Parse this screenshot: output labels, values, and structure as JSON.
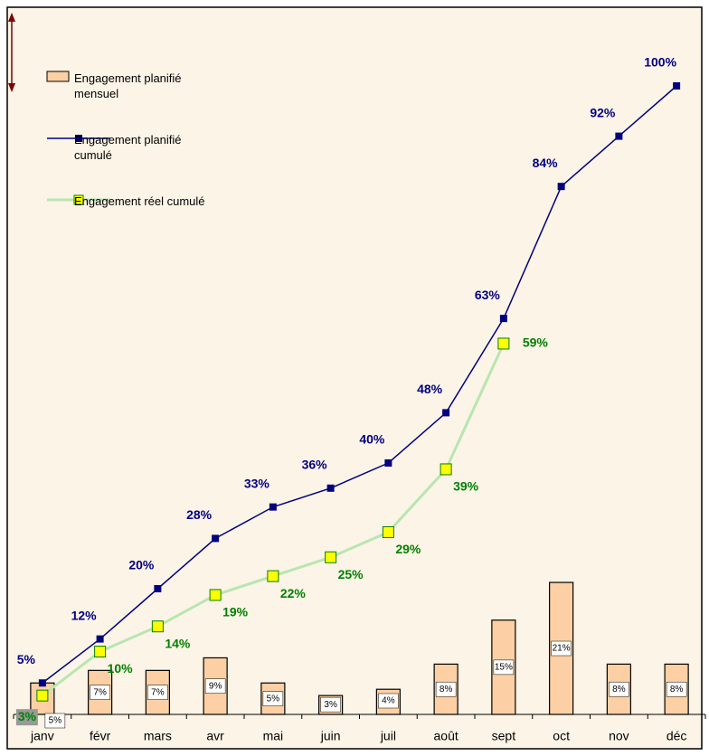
{
  "chart_data": {
    "type": "bar-line",
    "categories": [
      "janv",
      "févr",
      "mars",
      "avr",
      "mai",
      "juin",
      "juil",
      "août",
      "sept",
      "oct",
      "nov",
      "déc"
    ],
    "ylim": [
      0,
      100
    ],
    "series": [
      {
        "name": "Engagement planifié mensuel",
        "type": "bar",
        "color": "#fcd0a4",
        "values": [
          5,
          7,
          7,
          9,
          5,
          3,
          4,
          8,
          15,
          21,
          8,
          8
        ],
        "value_labels": [
          "5%",
          "7%",
          "7%",
          "9%",
          "5%",
          "3%",
          "4%",
          "8%",
          "15%",
          "21%",
          "8%",
          "8%"
        ]
      },
      {
        "name": "Engagement planifié cumulé",
        "type": "line",
        "color": "#000080",
        "values": [
          5,
          12,
          20,
          28,
          33,
          36,
          40,
          48,
          63,
          84,
          92,
          100
        ],
        "value_labels": [
          "5%",
          "12%",
          "20%",
          "28%",
          "33%",
          "36%",
          "40%",
          "48%",
          "63%",
          "84%",
          "92%",
          "100%"
        ]
      },
      {
        "name": "Engagement réel cumulé",
        "type": "line",
        "color": "#008000",
        "values": [
          3,
          10,
          14,
          19,
          22,
          25,
          29,
          39,
          59,
          null,
          null,
          null
        ],
        "value_labels": [
          "3%",
          "10%",
          "14%",
          "19%",
          "22%",
          "25%",
          "29%",
          "39%",
          "59%",
          null,
          null,
          null
        ]
      }
    ]
  }
}
